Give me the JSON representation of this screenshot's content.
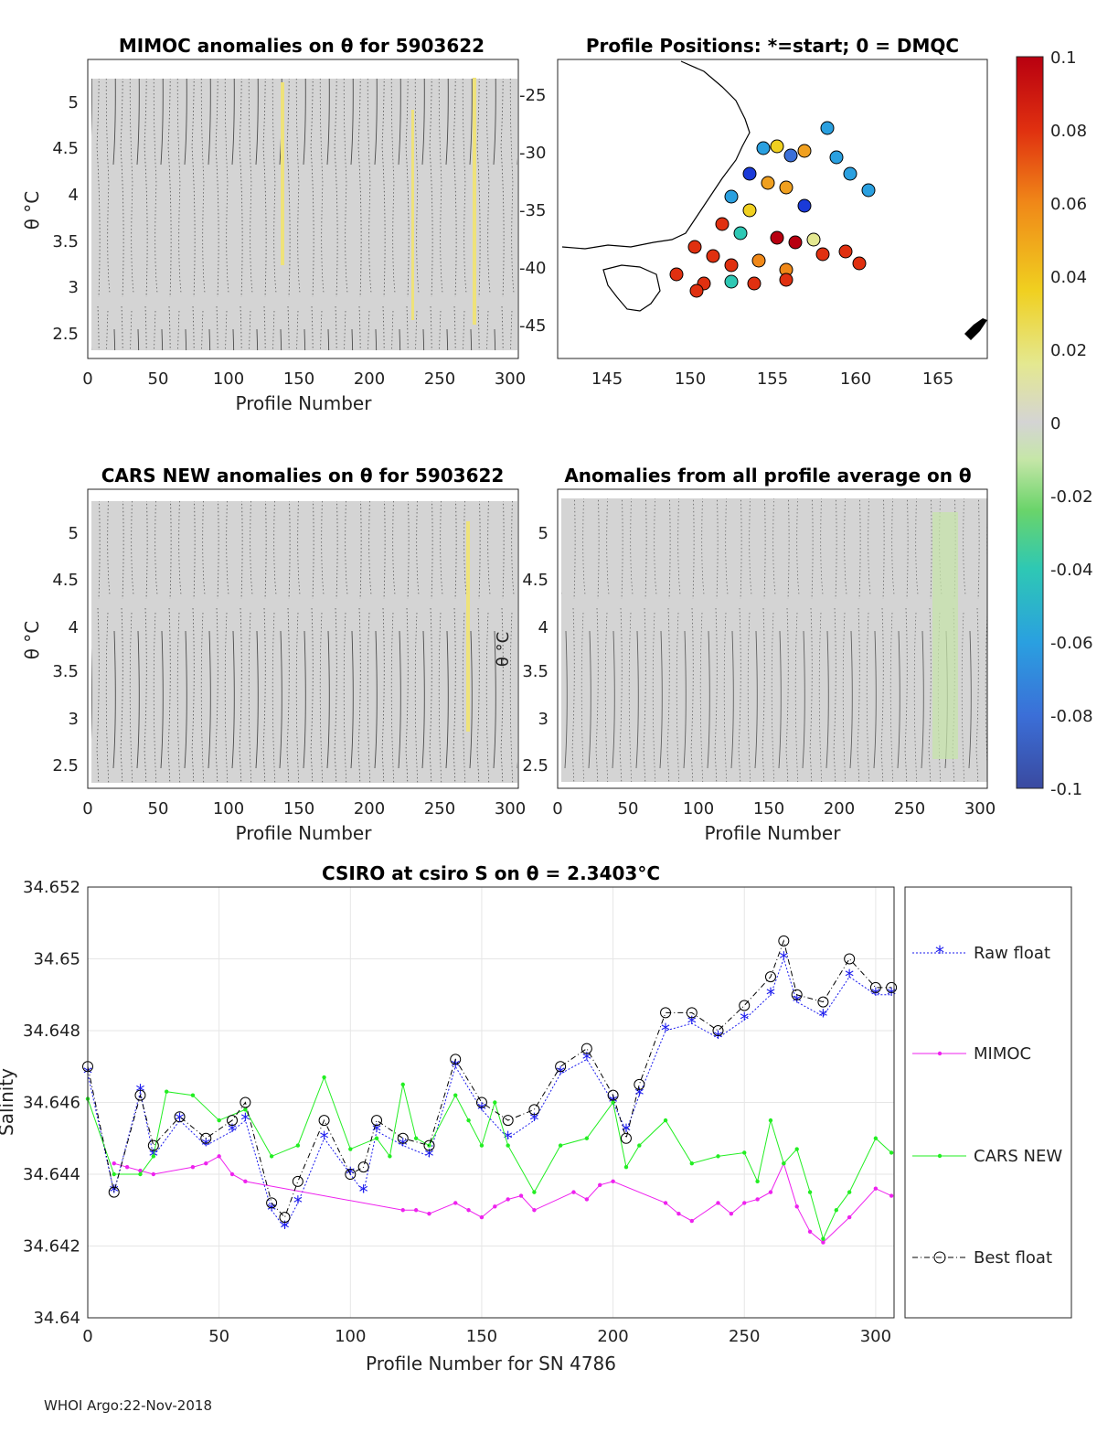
{
  "colors": {
    "anomaly_fill": "#d4d4d4",
    "contour": "#000000",
    "raw_float": "#1a1aee",
    "mimoc": "#ee22ee",
    "cars_new": "#22ee22",
    "best_float": "#000000",
    "grid": "#e6e6e6"
  },
  "panels": {
    "mimoc": {
      "title": "MIMOC anomalies on θ  for 5903622",
      "ylabel": "θ °C",
      "xlabel": "Profile Number",
      "xticks": [
        "0",
        "50",
        "100",
        "150",
        "200",
        "250",
        "300"
      ],
      "yticks": [
        "5",
        "4.5",
        "4",
        "3.5",
        "3",
        "2.5"
      ],
      "xlim": [
        0,
        305
      ],
      "ylim": [
        2.35,
        5.4
      ]
    },
    "positions": {
      "title": "Profile Positions: *=start; 0 = DMQC",
      "xticks": [
        "145",
        "150",
        "155",
        "160",
        "165"
      ],
      "yticks": [
        "-25",
        "-30",
        "-35",
        "-40",
        "-45"
      ],
      "xlim": [
        142,
        168
      ],
      "ylim": [
        -47.5,
        -22.5
      ]
    },
    "cars": {
      "title": "CARS NEW anomalies on θ for 5903622",
      "ylabel": "θ °C",
      "xlabel": "Profile Number",
      "xticks": [
        "0",
        "50",
        "100",
        "150",
        "200",
        "250",
        "300"
      ],
      "yticks": [
        "5",
        "4.5",
        "4",
        "3.5",
        "3",
        "2.5"
      ]
    },
    "allprof": {
      "title": "Anomalies from all profile average on θ",
      "ylabel_fragment": "θ °C",
      "xlabel": "Profile Number",
      "xticks": [
        "0",
        "50",
        "100",
        "150",
        "200",
        "250",
        "300"
      ],
      "yticks": [
        "5",
        "4.5",
        "4",
        "3.5",
        "3",
        "2.5"
      ]
    },
    "colorbar": {
      "ticks": [
        "0.1",
        "0.08",
        "0.06",
        "0.04",
        "0.02",
        "0",
        "-0.02",
        "-0.04",
        "-0.06",
        "-0.08",
        "-0.1"
      ],
      "range": [
        -0.1,
        0.1
      ]
    }
  },
  "bottom": {
    "title": "CSIRO at csiro S on θ = 2.3403°C",
    "title_main": "CSIRO at csiro S on θ = 2.3403",
    "title_unit": "°C",
    "xlabel": "Profile Number for SN 4786",
    "ylabel": "Salinity"
  },
  "footer": "WHOI Argo:22-Nov-2018",
  "chart_data": {
    "type": "line",
    "title": "CSIRO at csiro S on θ = 2.3403°C",
    "xlabel": "Profile Number for SN 4786",
    "ylabel": "Salinity",
    "xlim": [
      0,
      307
    ],
    "ylim": [
      34.64,
      34.652
    ],
    "xticks": [
      0,
      50,
      100,
      150,
      200,
      250,
      300
    ],
    "yticks": [
      34.64,
      34.642,
      34.644,
      34.646,
      34.648,
      34.65,
      34.652
    ],
    "ytick_labels": [
      "34.64",
      "34.642",
      "34.644",
      "34.646",
      "34.648",
      "34.65",
      "34.652"
    ],
    "legend": [
      "Raw float",
      "MIMOC",
      "CARS NEW",
      "Best float"
    ],
    "series": [
      {
        "name": "Raw float",
        "x": [
          0,
          10,
          20,
          25,
          35,
          45,
          55,
          60,
          70,
          75,
          80,
          90,
          100,
          105,
          110,
          120,
          130,
          140,
          150,
          160,
          170,
          180,
          190,
          200,
          205,
          210,
          220,
          230,
          240,
          250,
          260,
          265,
          270,
          280,
          290,
          300,
          306
        ],
        "values": [
          34.6468,
          34.6435,
          34.6463,
          34.6445,
          34.6455,
          34.6448,
          34.6452,
          34.6455,
          34.643,
          34.6425,
          34.6432,
          34.645,
          34.644,
          34.6435,
          34.6452,
          34.6448,
          34.6445,
          34.647,
          34.6458,
          34.645,
          34.6455,
          34.6468,
          34.6472,
          34.646,
          34.6452,
          34.6462,
          34.648,
          34.6482,
          34.6478,
          34.6483,
          34.649,
          34.65,
          34.6488,
          34.6484,
          34.6495,
          34.649,
          34.649
        ]
      },
      {
        "name": "MIMOC",
        "x": [
          10,
          15,
          20,
          25,
          40,
          45,
          50,
          55,
          60,
          120,
          125,
          130,
          140,
          145,
          150,
          155,
          160,
          165,
          170,
          185,
          190,
          195,
          200,
          220,
          225,
          230,
          240,
          245,
          250,
          255,
          260,
          265,
          270,
          275,
          280,
          290,
          300,
          306
        ],
        "values": [
          34.6443,
          34.6442,
          34.6441,
          34.644,
          34.6442,
          34.6443,
          34.6445,
          34.644,
          34.6438,
          34.643,
          34.643,
          34.6429,
          34.6432,
          34.643,
          34.6428,
          34.6431,
          34.6433,
          34.6434,
          34.643,
          34.6435,
          34.6433,
          34.6437,
          34.6438,
          34.6432,
          34.6429,
          34.6427,
          34.6432,
          34.6429,
          34.6432,
          34.6433,
          34.6435,
          34.6443,
          34.6431,
          34.6424,
          34.6421,
          34.6428,
          34.6436,
          34.6434
        ]
      },
      {
        "name": "CARS NEW",
        "x": [
          0,
          10,
          20,
          25,
          30,
          40,
          50,
          60,
          70,
          80,
          90,
          100,
          110,
          115,
          120,
          125,
          130,
          140,
          145,
          150,
          155,
          160,
          170,
          180,
          190,
          200,
          205,
          210,
          220,
          230,
          240,
          250,
          255,
          260,
          265,
          270,
          275,
          280,
          285,
          290,
          300,
          306
        ],
        "values": [
          34.6461,
          34.644,
          34.644,
          34.6445,
          34.6463,
          34.6462,
          34.6455,
          34.6458,
          34.6445,
          34.6448,
          34.6467,
          34.6447,
          34.645,
          34.6445,
          34.6465,
          34.645,
          34.6448,
          34.6462,
          34.6455,
          34.6448,
          34.646,
          34.6448,
          34.6435,
          34.6448,
          34.645,
          34.646,
          34.6442,
          34.6448,
          34.6455,
          34.6443,
          34.6445,
          34.6446,
          34.6438,
          34.6455,
          34.6443,
          34.6447,
          34.6435,
          34.6422,
          34.643,
          34.6435,
          34.645,
          34.6446
        ]
      },
      {
        "name": "Best float",
        "x": [
          0,
          10,
          20,
          25,
          35,
          45,
          55,
          60,
          70,
          75,
          80,
          90,
          100,
          105,
          110,
          120,
          130,
          140,
          150,
          160,
          170,
          180,
          190,
          200,
          205,
          210,
          220,
          230,
          240,
          250,
          260,
          265,
          270,
          280,
          290,
          300,
          306
        ],
        "values": [
          34.647,
          34.6435,
          34.6462,
          34.6448,
          34.6456,
          34.645,
          34.6455,
          34.646,
          34.6432,
          34.6428,
          34.6438,
          34.6455,
          34.644,
          34.6442,
          34.6455,
          34.645,
          34.6448,
          34.6472,
          34.646,
          34.6455,
          34.6458,
          34.647,
          34.6475,
          34.6462,
          34.645,
          34.6465,
          34.6485,
          34.6485,
          34.648,
          34.6487,
          34.6495,
          34.6505,
          34.649,
          34.6488,
          34.65,
          34.6492,
          34.6492
        ]
      }
    ]
  }
}
